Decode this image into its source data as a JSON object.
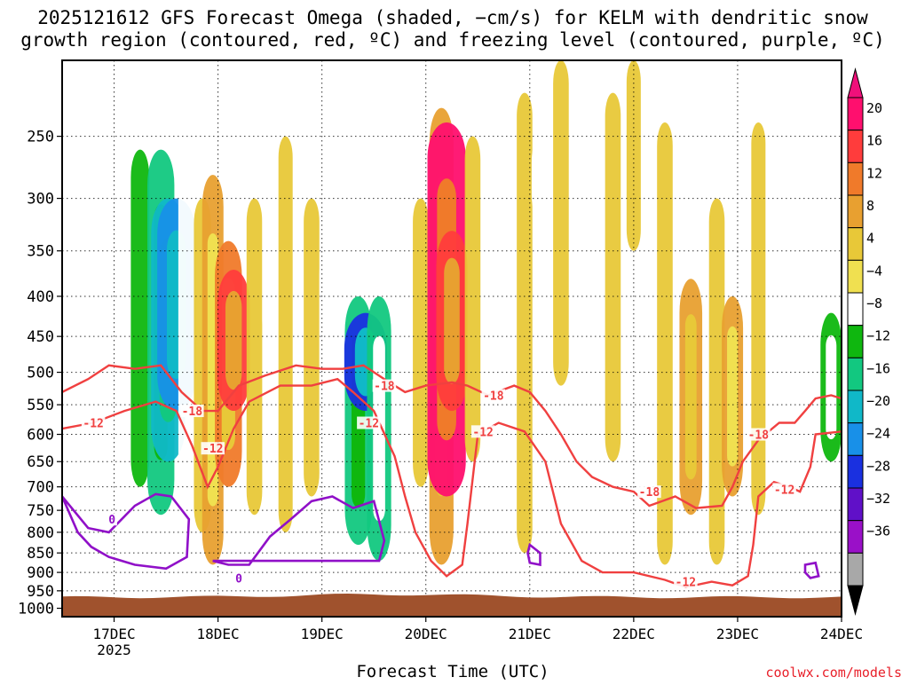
{
  "chart_data": {
    "type": "heatmap",
    "title": [
      "2025121612 GFS Forecast Omega (shaded, −cm/s) for KELM with dendritic snow",
      "growth region (contoured, red, ºC) and freezing level (contoured, purple, ºC)"
    ],
    "xlabel": "Forecast Time (UTC)",
    "ylabel": "",
    "credit": "coolwx.com/models",
    "x_ticks": [
      "17DEC",
      "18DEC",
      "19DEC",
      "20DEC",
      "21DEC",
      "22DEC",
      "23DEC",
      "24DEC"
    ],
    "x_tick_days": [
      17,
      18,
      19,
      20,
      21,
      22,
      23,
      24
    ],
    "x_year": "2025",
    "xlim_days": [
      16.5,
      24.0
    ],
    "y_ticks": [
      250,
      300,
      350,
      400,
      450,
      500,
      550,
      600,
      650,
      700,
      750,
      800,
      850,
      900,
      950,
      1000
    ],
    "ylim_hpa": [
      200,
      1025
    ],
    "y_scale": "log",
    "colorbar": {
      "labels": [
        "20",
        "16",
        "12",
        "8",
        "4",
        "−4",
        "−8",
        "−12",
        "−16",
        "−20",
        "−24",
        "−28",
        "−32",
        "−36"
      ],
      "colors": [
        "#ff0f6e",
        "#ff3c3c",
        "#f07a2a",
        "#e8a030",
        "#e8c838",
        "#f0e050",
        "#ffffff",
        "#0fb70f",
        "#12c880",
        "#10b8c8",
        "#1890e8",
        "#1a30e0",
        "#6010c8",
        "#9a10c8",
        "#a8a8a8"
      ],
      "bounds": [
        24,
        20,
        16,
        12,
        8,
        4,
        -4,
        -8,
        -12,
        -16,
        -20,
        -24,
        -28,
        -32,
        -36,
        -40
      ]
    },
    "shading_bands": [
      {
        "day": 17.05,
        "hpa_top": 220,
        "hpa_bot": 760,
        "omega": -6
      },
      {
        "day": 17.25,
        "hpa_top": 260,
        "hpa_bot": 700,
        "omega": -8
      },
      {
        "day": 17.45,
        "hpa_top": 260,
        "hpa_bot": 760,
        "omega": -14
      },
      {
        "day": 17.52,
        "hpa_top": 300,
        "hpa_bot": 650,
        "omega": -19
      },
      {
        "day": 17.6,
        "hpa_top": 300,
        "hpa_bot": 560,
        "omega": -22
      },
      {
        "day": 17.7,
        "hpa_top": 250,
        "hpa_bot": 720,
        "omega": -7
      },
      {
        "day": 17.85,
        "hpa_top": 300,
        "hpa_bot": 800,
        "omega": 7
      },
      {
        "day": 17.95,
        "hpa_top": 280,
        "hpa_bot": 880,
        "omega": 10
      },
      {
        "day": 18.1,
        "hpa_top": 340,
        "hpa_bot": 700,
        "omega": 14
      },
      {
        "day": 18.15,
        "hpa_top": 370,
        "hpa_bot": 560,
        "omega": 18
      },
      {
        "day": 18.35,
        "hpa_top": 300,
        "hpa_bot": 760,
        "omega": 6
      },
      {
        "day": 18.5,
        "hpa_top": 200,
        "hpa_bot": 460,
        "omega": -6
      },
      {
        "day": 18.65,
        "hpa_top": 250,
        "hpa_bot": 800,
        "omega": 5
      },
      {
        "day": 18.9,
        "hpa_top": 300,
        "hpa_bot": 720,
        "omega": 6
      },
      {
        "day": 19.05,
        "hpa_top": 350,
        "hpa_bot": 700,
        "omega": -6
      },
      {
        "day": 19.25,
        "hpa_top": 320,
        "hpa_bot": 880,
        "omega": -7
      },
      {
        "day": 19.35,
        "hpa_top": 400,
        "hpa_bot": 830,
        "omega": -14
      },
      {
        "day": 19.42,
        "hpa_top": 420,
        "hpa_bot": 560,
        "omega": -25
      },
      {
        "day": 19.55,
        "hpa_top": 400,
        "hpa_bot": 870,
        "omega": -12
      },
      {
        "day": 19.75,
        "hpa_top": 250,
        "hpa_bot": 750,
        "omega": -6
      },
      {
        "day": 19.95,
        "hpa_top": 300,
        "hpa_bot": 700,
        "omega": 6
      },
      {
        "day": 20.15,
        "hpa_top": 230,
        "hpa_bot": 880,
        "omega": 12
      },
      {
        "day": 20.2,
        "hpa_top": 240,
        "hpa_bot": 720,
        "omega": 22
      },
      {
        "day": 20.25,
        "hpa_top": 330,
        "hpa_bot": 560,
        "omega": 17
      },
      {
        "day": 20.45,
        "hpa_top": 250,
        "hpa_bot": 650,
        "omega": 6
      },
      {
        "day": 20.7,
        "hpa_top": 320,
        "hpa_bot": 850,
        "omega": -6
      },
      {
        "day": 20.95,
        "hpa_top": 220,
        "hpa_bot": 850,
        "omega": 6
      },
      {
        "day": 21.1,
        "hpa_top": 250,
        "hpa_bot": 320,
        "omega": -7
      },
      {
        "day": 21.3,
        "hpa_top": 200,
        "hpa_bot": 520,
        "omega": 6
      },
      {
        "day": 21.55,
        "hpa_top": 200,
        "hpa_bot": 420,
        "omega": -6
      },
      {
        "day": 21.8,
        "hpa_top": 220,
        "hpa_bot": 650,
        "omega": 6
      },
      {
        "day": 22.0,
        "hpa_top": 200,
        "hpa_bot": 350,
        "omega": 5
      },
      {
        "day": 22.3,
        "hpa_top": 240,
        "hpa_bot": 880,
        "omega": 6
      },
      {
        "day": 22.55,
        "hpa_top": 380,
        "hpa_bot": 760,
        "omega": 11
      },
      {
        "day": 22.8,
        "hpa_top": 300,
        "hpa_bot": 880,
        "omega": 6
      },
      {
        "day": 22.95,
        "hpa_top": 400,
        "hpa_bot": 720,
        "omega": 10
      },
      {
        "day": 23.2,
        "hpa_top": 240,
        "hpa_bot": 760,
        "omega": 5
      },
      {
        "day": 23.55,
        "hpa_top": 200,
        "hpa_bot": 340,
        "omega": -6
      },
      {
        "day": 23.75,
        "hpa_top": 300,
        "hpa_bot": 720,
        "omega": -6
      },
      {
        "day": 23.9,
        "hpa_top": 420,
        "hpa_bot": 650,
        "omega": -10
      }
    ],
    "dgz_contours": [
      {
        "label": "-12",
        "label_at": [
          16.8,
          580
        ],
        "points": [
          [
            16.5,
            590
          ],
          [
            16.8,
            580
          ],
          [
            17.1,
            560
          ],
          [
            17.4,
            545
          ],
          [
            17.6,
            560
          ],
          [
            17.75,
            620
          ],
          [
            17.9,
            700
          ],
          [
            18.0,
            660
          ],
          [
            18.15,
            590
          ],
          [
            18.3,
            545
          ],
          [
            18.6,
            520
          ],
          [
            18.9,
            520
          ],
          [
            19.15,
            510
          ],
          [
            19.3,
            530
          ],
          [
            19.5,
            560
          ],
          [
            19.7,
            640
          ],
          [
            19.8,
            720
          ],
          [
            19.9,
            800
          ],
          [
            20.05,
            870
          ],
          [
            20.2,
            910
          ],
          [
            20.35,
            880
          ],
          [
            20.4,
            780
          ],
          [
            20.5,
            600
          ],
          [
            20.7,
            580
          ],
          [
            20.95,
            595
          ],
          [
            21.15,
            650
          ],
          [
            21.3,
            780
          ],
          [
            21.5,
            870
          ],
          [
            21.7,
            900
          ],
          [
            22.0,
            900
          ],
          [
            22.3,
            920
          ],
          [
            22.5,
            940
          ],
          [
            22.75,
            925
          ],
          [
            22.95,
            935
          ],
          [
            23.1,
            910
          ],
          [
            23.15,
            830
          ],
          [
            23.2,
            720
          ],
          [
            23.35,
            690
          ],
          [
            23.5,
            700
          ],
          [
            23.6,
            710
          ],
          [
            23.7,
            660
          ],
          [
            23.75,
            600
          ],
          [
            24.0,
            595
          ]
        ]
      },
      {
        "label": "-18",
        "label_at": [
          17.75,
          560
        ],
        "points": [
          [
            16.5,
            530
          ],
          [
            16.75,
            510
          ],
          [
            16.95,
            490
          ],
          [
            17.2,
            495
          ],
          [
            17.45,
            490
          ],
          [
            17.65,
            530
          ],
          [
            17.85,
            560
          ],
          [
            18.0,
            560
          ],
          [
            18.2,
            520
          ],
          [
            18.45,
            505
          ],
          [
            18.75,
            490
          ],
          [
            19.0,
            495
          ],
          [
            19.2,
            495
          ],
          [
            19.4,
            490
          ],
          [
            19.6,
            510
          ],
          [
            19.8,
            530
          ],
          [
            20.0,
            520
          ],
          [
            20.25,
            515
          ],
          [
            20.4,
            520
          ],
          [
            20.6,
            535
          ],
          [
            20.85,
            520
          ],
          [
            21.0,
            530
          ],
          [
            21.15,
            560
          ],
          [
            21.3,
            600
          ],
          [
            21.45,
            650
          ],
          [
            21.6,
            680
          ],
          [
            21.8,
            700
          ],
          [
            22.0,
            710
          ],
          [
            22.15,
            740
          ],
          [
            22.4,
            720
          ],
          [
            22.6,
            745
          ],
          [
            22.85,
            740
          ],
          [
            22.95,
            700
          ],
          [
            23.05,
            650
          ],
          [
            23.2,
            610
          ],
          [
            23.4,
            580
          ],
          [
            23.55,
            580
          ],
          [
            23.65,
            560
          ],
          [
            23.75,
            540
          ],
          [
            23.9,
            535
          ],
          [
            24.0,
            540
          ]
        ]
      }
    ],
    "dgz_small_labels": [
      {
        "label": "-18",
        "at": [
          19.6,
          520
        ]
      },
      {
        "label": "-12",
        "at": [
          19.45,
          580
        ]
      },
      {
        "label": "-18",
        "at": [
          20.65,
          535
        ]
      },
      {
        "label": "-12",
        "at": [
          20.55,
          595
        ]
      },
      {
        "label": "-12",
        "at": [
          17.95,
          625
        ]
      },
      {
        "label": "-18",
        "at": [
          22.15,
          710
        ]
      },
      {
        "label": "-18",
        "at": [
          23.2,
          600
        ]
      },
      {
        "label": "-12",
        "at": [
          23.45,
          705
        ]
      },
      {
        "label": "-12",
        "at": [
          22.5,
          925
        ]
      }
    ],
    "freezing_level": [
      {
        "label": "0",
        "label_at": [
          16.98,
          770
        ],
        "points": [
          [
            16.5,
            720
          ],
          [
            16.75,
            790
          ],
          [
            16.95,
            800
          ],
          [
            17.2,
            740
          ],
          [
            17.4,
            715
          ],
          [
            17.55,
            720
          ],
          [
            17.72,
            770
          ],
          [
            17.7,
            860
          ],
          [
            17.5,
            890
          ],
          [
            17.2,
            880
          ],
          [
            16.95,
            860
          ],
          [
            16.78,
            835
          ],
          [
            16.65,
            800
          ]
        ]
      },
      {
        "label": "0",
        "label_at": [
          18.2,
          915
        ],
        "points": [
          [
            17.95,
            870
          ],
          [
            18.1,
            880
          ],
          [
            18.3,
            880
          ],
          [
            18.5,
            810
          ],
          [
            18.7,
            770
          ],
          [
            18.9,
            730
          ],
          [
            19.1,
            720
          ],
          [
            19.3,
            745
          ],
          [
            19.5,
            730
          ],
          [
            19.6,
            820
          ],
          [
            19.55,
            870
          ]
        ]
      },
      {
        "label": "",
        "label_at": [
          21.0,
          850
        ],
        "points": [
          [
            21.0,
            830
          ],
          [
            21.1,
            850
          ],
          [
            21.1,
            880
          ],
          [
            21.0,
            875
          ],
          [
            20.98,
            850
          ]
        ]
      },
      {
        "label": "",
        "label_at": [
          23.7,
          890
        ],
        "points": [
          [
            23.65,
            880
          ],
          [
            23.75,
            875
          ],
          [
            23.78,
            910
          ],
          [
            23.7,
            915
          ],
          [
            23.65,
            900
          ]
        ]
      }
    ]
  }
}
